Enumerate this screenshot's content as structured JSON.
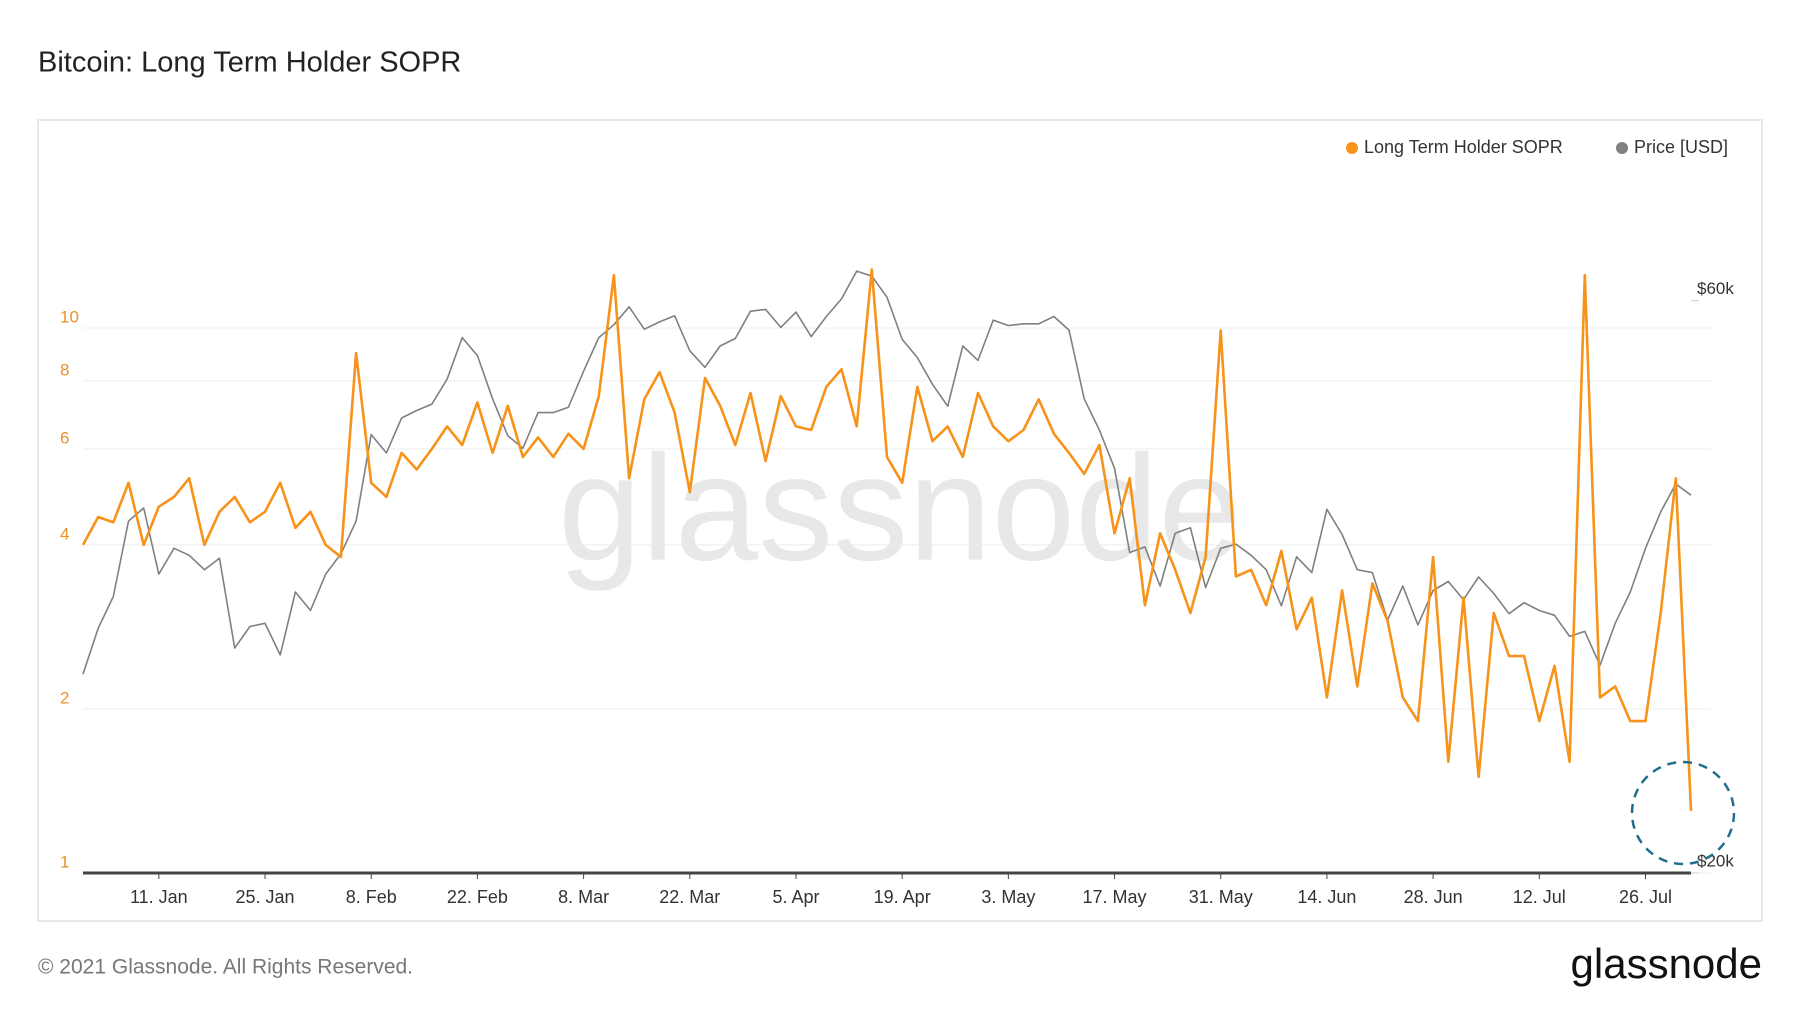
{
  "chart_data": {
    "type": "line",
    "title": "Bitcoin: Long Term Holder SOPR",
    "watermark": "glassnode",
    "copyright": "© 2021 Glassnode. All Rights Reserved.",
    "logo": "glassnode",
    "log_scale": true,
    "grid": true,
    "legend": "top-right",
    "categories": [
      null,
      null,
      null,
      null,
      null,
      "11. Jan",
      null,
      null,
      null,
      null,
      null,
      null,
      "25. Jan",
      null,
      null,
      null,
      null,
      null,
      null,
      "8. Feb",
      null,
      null,
      null,
      null,
      null,
      null,
      "22. Feb",
      null,
      null,
      null,
      null,
      null,
      null,
      "8. Mar",
      null,
      null,
      null,
      null,
      null,
      null,
      "22. Mar",
      null,
      null,
      null,
      null,
      null,
      null,
      "5. Apr",
      null,
      null,
      null,
      null,
      null,
      null,
      "19. Apr",
      null,
      null,
      null,
      null,
      null,
      null,
      "3. May",
      null,
      null,
      null,
      null,
      null,
      null,
      "17. May",
      null,
      null,
      null,
      null,
      null,
      null,
      "31. May",
      null,
      null,
      null,
      null,
      null,
      null,
      "14. Jun",
      null,
      null,
      null,
      null,
      null,
      null,
      "28. Jun",
      null,
      null,
      null,
      null,
      null,
      null,
      "12. Jul",
      null,
      null,
      null,
      null,
      null,
      null,
      "26. Jul",
      null,
      null,
      null
    ],
    "ylim": [
      1,
      20
    ],
    "yticks": [
      1,
      2,
      4,
      6,
      8,
      10
    ],
    "y2lim": [
      20000,
      78000
    ],
    "y2ticks": [
      {
        "value": 20000,
        "label": "$20k"
      },
      {
        "value": 60000,
        "label": "$60k"
      }
    ],
    "series": [
      {
        "name": "Long Term Holder SOPR",
        "color": "#f7931a",
        "values": [
          4.0,
          4.5,
          4.4,
          5.2,
          4.0,
          4.7,
          4.9,
          5.3,
          4.0,
          4.6,
          4.9,
          4.4,
          4.6,
          5.2,
          4.3,
          4.6,
          4.0,
          3.8,
          9.0,
          5.2,
          4.9,
          5.9,
          5.5,
          6.0,
          6.6,
          6.1,
          7.3,
          5.9,
          7.2,
          5.8,
          6.3,
          5.8,
          6.4,
          6.0,
          7.5,
          12.5,
          5.3,
          7.4,
          8.3,
          7.0,
          5.0,
          8.1,
          7.2,
          6.1,
          7.6,
          5.7,
          7.5,
          6.6,
          6.5,
          7.8,
          8.4,
          6.6,
          12.8,
          5.8,
          5.2,
          7.8,
          6.2,
          6.6,
          5.8,
          7.6,
          6.6,
          6.2,
          6.5,
          7.4,
          6.4,
          5.9,
          5.4,
          6.1,
          4.2,
          5.3,
          3.1,
          4.2,
          3.6,
          3.0,
          3.8,
          9.9,
          3.5,
          3.6,
          3.1,
          3.9,
          2.8,
          3.2,
          2.1,
          3.3,
          2.2,
          3.4,
          2.9,
          2.1,
          1.9,
          3.8,
          1.6,
          3.2,
          1.5,
          3.0,
          2.5,
          2.5,
          1.9,
          2.4,
          1.6,
          12.5,
          2.1,
          2.2,
          1.9,
          1.9,
          3.0,
          5.3,
          1.3
        ]
      },
      {
        "name": "Price [USD]",
        "color": "#808080",
        "axis": "y2",
        "values": [
          29300,
          32000,
          34000,
          39300,
          40300,
          35500,
          37300,
          36800,
          35800,
          36600,
          30800,
          32100,
          32300,
          30400,
          34300,
          33100,
          35500,
          36900,
          39300,
          46400,
          44800,
          47900,
          48600,
          49200,
          51600,
          55900,
          54000,
          49700,
          46300,
          45200,
          48400,
          48400,
          48900,
          52400,
          55900,
          57300,
          59300,
          56800,
          57600,
          58300,
          54500,
          52800,
          55000,
          55800,
          58800,
          59000,
          57000,
          58700,
          56000,
          58200,
          60200,
          63500,
          62900,
          60400,
          55700,
          53800,
          51100,
          49000,
          55000,
          53500,
          57800,
          57200,
          57400,
          57400,
          58200,
          56700,
          49700,
          46800,
          43500,
          37000,
          37400,
          34700,
          38400,
          38800,
          34600,
          37300,
          37600,
          36800,
          35800,
          33400,
          36700,
          35600,
          40200,
          38300,
          35800,
          35600,
          32500,
          34700,
          32200,
          34400,
          35000,
          33800,
          35300,
          34200,
          32900,
          33600,
          33100,
          32800,
          31500,
          31800,
          29800,
          32300,
          34300,
          37300,
          40000,
          42200,
          41300
        ]
      }
    ]
  }
}
